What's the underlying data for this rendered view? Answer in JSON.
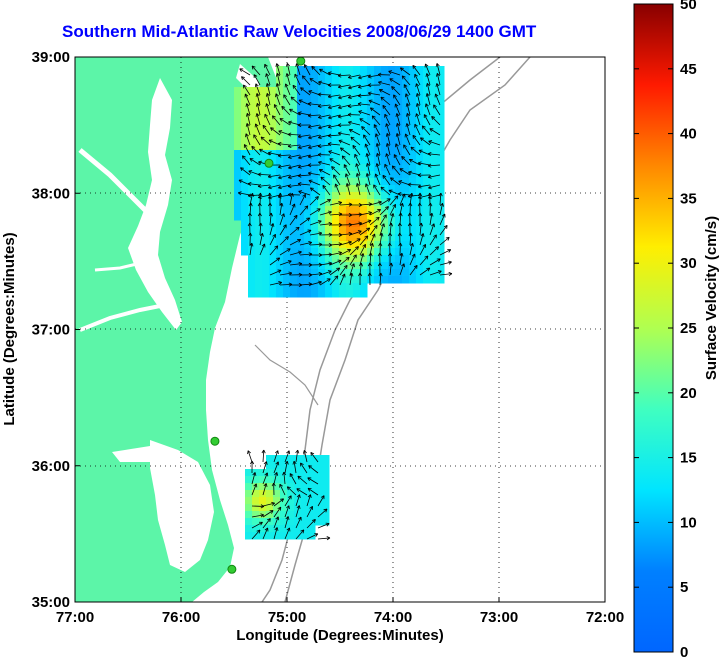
{
  "title": "Southern Mid-Atlantic Raw Velocities 2008/06/29 1400 GMT",
  "map": {
    "xlabel": "Longitude (Degrees:Minutes)",
    "ylabel": "Latitude (Degrees:Minutes)",
    "x_ticks": [
      "77:00",
      "76:00",
      "75:00",
      "74:00",
      "73:00",
      "72:00"
    ],
    "y_ticks": [
      "39:00",
      "38:00",
      "37:00",
      "36:00",
      "35:00"
    ],
    "lon_range": [
      -77,
      -72
    ],
    "lat_range": [
      35,
      39
    ],
    "land_color": "#5cf5a8",
    "grid": "dotted",
    "station_color": "#33cc33",
    "stations": [
      {
        "lon": -74.87,
        "lat": 38.97
      },
      {
        "lon": -75.17,
        "lat": 38.22
      },
      {
        "lon": -75.68,
        "lat": 36.18
      },
      {
        "lon": -75.52,
        "lat": 35.24
      }
    ]
  },
  "colorbar": {
    "label": "Surface Velocity (cm/s)",
    "ticks": [
      "0",
      "5",
      "10",
      "15",
      "20",
      "25",
      "30",
      "35",
      "40",
      "45",
      "50"
    ],
    "range": [
      0,
      50
    ],
    "colormap": "jet"
  }
}
